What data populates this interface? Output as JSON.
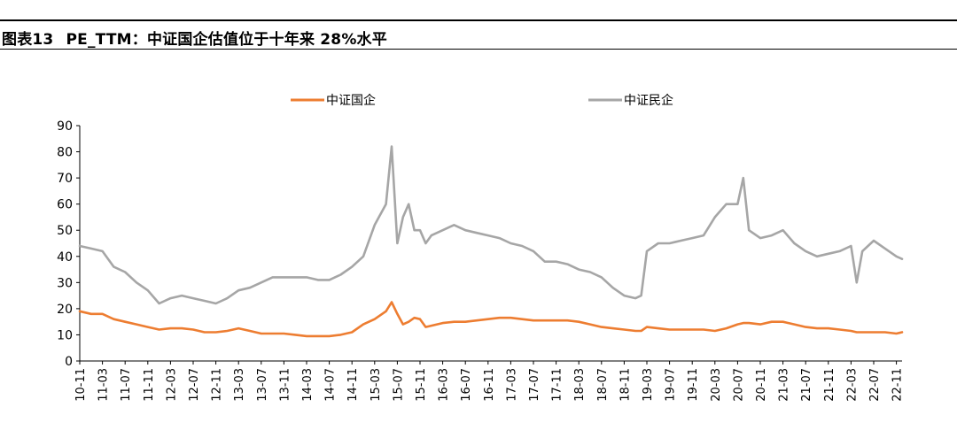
{
  "header": {
    "figure_no": "图表13",
    "title": "PE_TTM：中证国企估值位于十年来 28%水平"
  },
  "colors": {
    "soe": "#ED7D31",
    "private": "#A6A6A6",
    "axis": "#000000"
  },
  "chart_data": {
    "type": "line",
    "title": "PE_TTM：中证国企估值位于十年来 28%水平",
    "xlabel": "",
    "ylabel": "",
    "ylim": [
      0,
      90
    ],
    "yticks": [
      0,
      10,
      20,
      30,
      40,
      50,
      60,
      70,
      80,
      90
    ],
    "grid": false,
    "legend_position": "top-center",
    "x_tick_labels": [
      "10-11",
      "11-03",
      "11-07",
      "11-11",
      "12-03",
      "12-07",
      "12-11",
      "13-03",
      "13-07",
      "13-11",
      "14-03",
      "14-07",
      "14-11",
      "15-03",
      "15-07",
      "15-11",
      "16-03",
      "16-07",
      "16-11",
      "17-03",
      "17-07",
      "17-11",
      "18-03",
      "18-07",
      "18-11",
      "19-03",
      "19-07",
      "19-11",
      "20-03",
      "20-07",
      "20-11",
      "21-03",
      "21-07",
      "21-11",
      "22-03",
      "22-07",
      "22-11"
    ],
    "x": [
      "2010-11",
      "2011-01",
      "2011-03",
      "2011-05",
      "2011-07",
      "2011-09",
      "2011-11",
      "2012-01",
      "2012-03",
      "2012-05",
      "2012-07",
      "2012-09",
      "2012-11",
      "2013-01",
      "2013-03",
      "2013-05",
      "2013-07",
      "2013-09",
      "2013-11",
      "2014-01",
      "2014-03",
      "2014-05",
      "2014-07",
      "2014-09",
      "2014-11",
      "2015-01",
      "2015-03",
      "2015-05",
      "2015-06",
      "2015-07",
      "2015-08",
      "2015-09",
      "2015-10",
      "2015-11",
      "2015-12",
      "2016-01",
      "2016-03",
      "2016-05",
      "2016-07",
      "2016-09",
      "2016-11",
      "2017-01",
      "2017-03",
      "2017-05",
      "2017-07",
      "2017-09",
      "2017-11",
      "2018-01",
      "2018-03",
      "2018-05",
      "2018-07",
      "2018-09",
      "2018-11",
      "2019-01",
      "2019-02",
      "2019-03",
      "2019-05",
      "2019-07",
      "2019-09",
      "2019-11",
      "2020-01",
      "2020-03",
      "2020-05",
      "2020-07",
      "2020-08",
      "2020-09",
      "2020-11",
      "2021-01",
      "2021-03",
      "2021-05",
      "2021-07",
      "2021-09",
      "2021-11",
      "2022-01",
      "2022-03",
      "2022-04",
      "2022-05",
      "2022-07",
      "2022-09",
      "2022-11",
      "2022-12"
    ],
    "series": [
      {
        "name": "中证国企",
        "color": "#ED7D31",
        "values": [
          19,
          18,
          18,
          16,
          15,
          14,
          13,
          12,
          12.5,
          12.5,
          12,
          11,
          11,
          11.5,
          12.5,
          11.5,
          10.5,
          10.5,
          10.5,
          10,
          9.5,
          9.5,
          9.5,
          10,
          11,
          14,
          16,
          19,
          22.5,
          18,
          14,
          15,
          16.5,
          16,
          13,
          13.5,
          14.5,
          15,
          15,
          15.5,
          16,
          16.5,
          16.5,
          16,
          15.5,
          15.5,
          15.5,
          15.5,
          15,
          14,
          13,
          12.5,
          12,
          11.5,
          11.5,
          13,
          12.5,
          12,
          12,
          12,
          12,
          11.5,
          12.5,
          14,
          14.5,
          14.5,
          14,
          15,
          15,
          14,
          13,
          12.5,
          12.5,
          12,
          11.5,
          11,
          11,
          11,
          11,
          10.5,
          11
        ]
      },
      {
        "name": "中证民企",
        "color": "#A6A6A6",
        "values": [
          44,
          43,
          42,
          36,
          34,
          30,
          27,
          22,
          24,
          25,
          24,
          23,
          22,
          24,
          27,
          28,
          30,
          32,
          32,
          32,
          32,
          31,
          31,
          33,
          36,
          40,
          52,
          60,
          82,
          45,
          55,
          60,
          50,
          50,
          45,
          48,
          50,
          52,
          50,
          49,
          48,
          47,
          45,
          44,
          42,
          38,
          38,
          37,
          35,
          34,
          32,
          28,
          25,
          24,
          25,
          42,
          45,
          45,
          46,
          47,
          48,
          55,
          60,
          60,
          70,
          50,
          47,
          48,
          50,
          45,
          42,
          40,
          41,
          42,
          44,
          30,
          42,
          46,
          43,
          40,
          39
        ]
      }
    ]
  }
}
